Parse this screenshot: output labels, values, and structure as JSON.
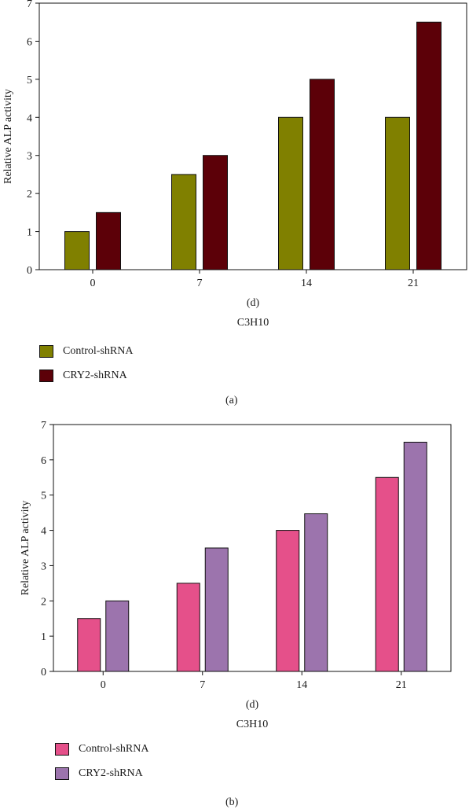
{
  "chart_data": [
    {
      "type": "bar",
      "panel": "(a)",
      "categories": [
        "0",
        "7",
        "14",
        "21"
      ],
      "series": [
        {
          "name": "Control-shRNA",
          "values": [
            1,
            2.5,
            4,
            4
          ],
          "color": "#808000"
        },
        {
          "name": "CRY2-shRNA",
          "values": [
            1.5,
            3,
            5,
            6.5
          ],
          "color": "#5c0008"
        }
      ],
      "xlabel": "(d)",
      "subtitle": "C3H10",
      "ylabel": "Relative ALP activity",
      "ylim": [
        0,
        7
      ],
      "yticks": [
        "0",
        "1",
        "2",
        "3",
        "4",
        "5",
        "6",
        "7"
      ],
      "legend": "below"
    },
    {
      "type": "bar",
      "panel": "(b)",
      "categories": [
        "0",
        "7",
        "14",
        "21"
      ],
      "series": [
        {
          "name": "Control-shRNA",
          "values": [
            1.5,
            2.5,
            4,
            5.5
          ],
          "color": "#e5508a"
        },
        {
          "name": "CRY2-shRNA",
          "values": [
            2,
            3.5,
            4.47,
            6.5
          ],
          "color": "#9c74ad"
        }
      ],
      "xlabel": "(d)",
      "subtitle": "C3H10",
      "ylabel": "Relative ALP activity",
      "ylim": [
        0,
        7
      ],
      "yticks": [
        "0",
        "1",
        "2",
        "3",
        "4",
        "5",
        "6",
        "7"
      ],
      "legend": "below"
    }
  ]
}
